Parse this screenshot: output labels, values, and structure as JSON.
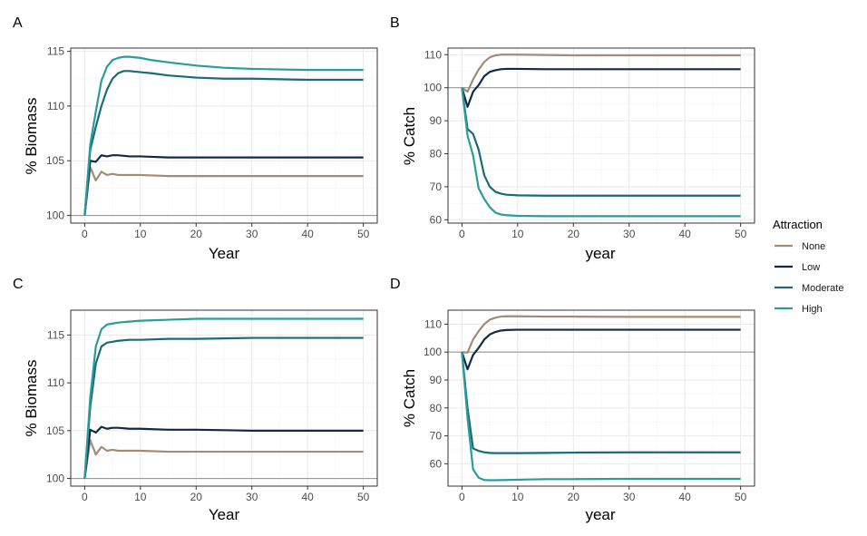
{
  "legend": {
    "title": "Attraction",
    "entries": [
      {
        "name": "None",
        "color": "#a38b75"
      },
      {
        "name": "Low",
        "color": "#0f2b45"
      },
      {
        "name": "Moderate",
        "color": "#1a6a78"
      },
      {
        "name": "High",
        "color": "#2a9d9a"
      }
    ],
    "placement": "right"
  },
  "style": {
    "major_grid": "#ebebeb",
    "minor_grid": "#f5f5f5",
    "border": "#333333",
    "reference_line": "#999999"
  },
  "chart_data": [
    {
      "panel": "A",
      "type": "line",
      "xlabel": "Year",
      "ylabel": "% Biomass",
      "xlim": [
        -2.5,
        52.5
      ],
      "ylim": [
        99.3,
        115.3
      ],
      "xticks": [
        0,
        10,
        20,
        30,
        40,
        50
      ],
      "yticks": [
        100,
        105,
        110,
        115
      ],
      "reference_y": 100,
      "series": [
        {
          "name": "None",
          "x": [
            0,
            1,
            2,
            3,
            4,
            5,
            6,
            8,
            10,
            15,
            20,
            30,
            40,
            50
          ],
          "y": [
            100,
            104.4,
            103.2,
            104.0,
            103.7,
            103.8,
            103.7,
            103.7,
            103.7,
            103.6,
            103.6,
            103.6,
            103.6,
            103.6
          ]
        },
        {
          "name": "Low",
          "x": [
            0,
            1,
            2,
            3,
            4,
            5,
            6,
            8,
            10,
            15,
            20,
            30,
            40,
            50
          ],
          "y": [
            100,
            105.0,
            104.9,
            105.5,
            105.4,
            105.5,
            105.5,
            105.4,
            105.4,
            105.3,
            105.3,
            105.3,
            105.3,
            105.3
          ]
        },
        {
          "name": "Moderate",
          "x": [
            0,
            1,
            2,
            3,
            4,
            5,
            6,
            7,
            8,
            10,
            12,
            15,
            20,
            25,
            30,
            40,
            50
          ],
          "y": [
            100,
            106.0,
            108.1,
            110.0,
            111.5,
            112.5,
            113.0,
            113.2,
            113.2,
            113.1,
            113.0,
            112.8,
            112.6,
            112.5,
            112.5,
            112.4,
            112.4
          ]
        },
        {
          "name": "High",
          "x": [
            0,
            1,
            2,
            3,
            4,
            5,
            6,
            7,
            8,
            10,
            12,
            15,
            20,
            25,
            30,
            40,
            50
          ],
          "y": [
            100,
            106.5,
            109.5,
            112.3,
            113.6,
            114.2,
            114.4,
            114.5,
            114.5,
            114.4,
            114.2,
            114.0,
            113.7,
            113.5,
            113.4,
            113.3,
            113.3
          ]
        }
      ]
    },
    {
      "panel": "B",
      "type": "line",
      "xlabel": "year",
      "ylabel": "% Catch",
      "xlim": [
        -2.5,
        52.5
      ],
      "ylim": [
        59,
        112
      ],
      "xticks": [
        0,
        10,
        20,
        30,
        40,
        50
      ],
      "yticks": [
        60,
        70,
        80,
        90,
        100,
        110
      ],
      "reference_y": 100,
      "series": [
        {
          "name": "None",
          "x": [
            0,
            1,
            2,
            3,
            4,
            5,
            6,
            7,
            8,
            10,
            15,
            20,
            30,
            40,
            50
          ],
          "y": [
            100,
            98.8,
            102.5,
            105.5,
            107.8,
            109.2,
            109.8,
            110.0,
            110.0,
            110.0,
            109.9,
            109.8,
            109.8,
            109.8,
            109.8
          ]
        },
        {
          "name": "Low",
          "x": [
            0,
            1,
            2,
            3,
            4,
            5,
            6,
            7,
            8,
            10,
            15,
            20,
            30,
            40,
            50
          ],
          "y": [
            100,
            94.2,
            98.8,
            100.8,
            103.5,
            104.8,
            105.3,
            105.6,
            105.7,
            105.7,
            105.6,
            105.6,
            105.6,
            105.6,
            105.6
          ]
        },
        {
          "name": "Moderate",
          "x": [
            0,
            1,
            2,
            3,
            4,
            5,
            6,
            7,
            8,
            10,
            15,
            20,
            30,
            40,
            50
          ],
          "y": [
            100,
            87.5,
            86.0,
            81.2,
            73.5,
            70.0,
            68.5,
            67.9,
            67.6,
            67.4,
            67.3,
            67.3,
            67.3,
            67.3,
            67.3
          ]
        },
        {
          "name": "High",
          "x": [
            0,
            1,
            2,
            3,
            4,
            5,
            6,
            7,
            8,
            10,
            15,
            20,
            30,
            40,
            50
          ],
          "y": [
            100,
            85.5,
            79.5,
            69.5,
            66.3,
            63.8,
            62.2,
            61.6,
            61.4,
            61.2,
            61.1,
            61.1,
            61.1,
            61.1,
            61.1
          ]
        }
      ]
    },
    {
      "panel": "C",
      "type": "line",
      "xlabel": "Year",
      "ylabel": "% Biomass",
      "xlim": [
        -2.5,
        52.5
      ],
      "ylim": [
        99.2,
        117.6
      ],
      "xticks": [
        0,
        10,
        20,
        30,
        40,
        50
      ],
      "yticks": [
        100,
        105,
        110,
        115
      ],
      "reference_y": 100,
      "series": [
        {
          "name": "None",
          "x": [
            0,
            1,
            2,
            3,
            4,
            5,
            6,
            8,
            10,
            15,
            20,
            30,
            40,
            50
          ],
          "y": [
            100,
            104.0,
            102.5,
            103.3,
            102.9,
            103.0,
            102.9,
            102.9,
            102.9,
            102.8,
            102.8,
            102.8,
            102.8,
            102.8
          ]
        },
        {
          "name": "Low",
          "x": [
            0,
            1,
            2,
            3,
            4,
            5,
            6,
            8,
            10,
            15,
            20,
            30,
            40,
            50
          ],
          "y": [
            100,
            105.1,
            104.8,
            105.4,
            105.2,
            105.3,
            105.3,
            105.2,
            105.2,
            105.1,
            105.1,
            105.0,
            105.0,
            105.0
          ]
        },
        {
          "name": "Moderate",
          "x": [
            0,
            1,
            2,
            3,
            4,
            5,
            6,
            8,
            10,
            15,
            20,
            30,
            40,
            50
          ],
          "y": [
            100,
            107.5,
            112.0,
            113.8,
            114.2,
            114.3,
            114.4,
            114.5,
            114.5,
            114.6,
            114.6,
            114.7,
            114.7,
            114.7
          ]
        },
        {
          "name": "High",
          "x": [
            0,
            1,
            2,
            3,
            4,
            5,
            6,
            8,
            10,
            15,
            20,
            30,
            40,
            50
          ],
          "y": [
            100,
            108.5,
            113.8,
            115.6,
            116.1,
            116.2,
            116.3,
            116.4,
            116.5,
            116.6,
            116.7,
            116.7,
            116.7,
            116.7
          ]
        }
      ]
    },
    {
      "panel": "D",
      "type": "line",
      "xlabel": "year",
      "ylabel": "% Catch",
      "xlim": [
        -2.5,
        52.5
      ],
      "ylim": [
        52,
        115
      ],
      "xticks": [
        0,
        10,
        20,
        30,
        40,
        50
      ],
      "yticks": [
        60,
        70,
        80,
        90,
        100,
        110
      ],
      "reference_y": 100,
      "series": [
        {
          "name": "None",
          "x": [
            0,
            1,
            2,
            3,
            4,
            5,
            6,
            7,
            8,
            10,
            15,
            20,
            30,
            40,
            50
          ],
          "y": [
            100,
            99.8,
            104.5,
            107.5,
            110.0,
            111.6,
            112.3,
            112.7,
            112.8,
            112.8,
            112.7,
            112.7,
            112.6,
            112.6,
            112.6
          ]
        },
        {
          "name": "Low",
          "x": [
            0,
            1,
            2,
            3,
            4,
            5,
            6,
            7,
            8,
            10,
            15,
            20,
            30,
            40,
            50
          ],
          "y": [
            100,
            93.8,
            99.0,
            101.5,
            104.5,
            106.3,
            107.2,
            107.7,
            107.9,
            108.0,
            108.0,
            108.0,
            108.0,
            108.0,
            108.0
          ]
        },
        {
          "name": "Moderate",
          "x": [
            0,
            1,
            2,
            3,
            4,
            5,
            6,
            8,
            10,
            15,
            20,
            30,
            40,
            50
          ],
          "y": [
            100,
            80.0,
            65.5,
            64.6,
            64.1,
            63.9,
            63.8,
            63.8,
            63.8,
            63.9,
            64.0,
            64.1,
            64.1,
            64.1
          ]
        },
        {
          "name": "High",
          "x": [
            0,
            1,
            2,
            3,
            4,
            5,
            6,
            8,
            10,
            15,
            20,
            30,
            40,
            50
          ],
          "y": [
            100,
            76.5,
            58.0,
            55.0,
            54.2,
            54.1,
            54.1,
            54.2,
            54.3,
            54.5,
            54.5,
            54.6,
            54.6,
            54.6
          ]
        }
      ]
    }
  ]
}
